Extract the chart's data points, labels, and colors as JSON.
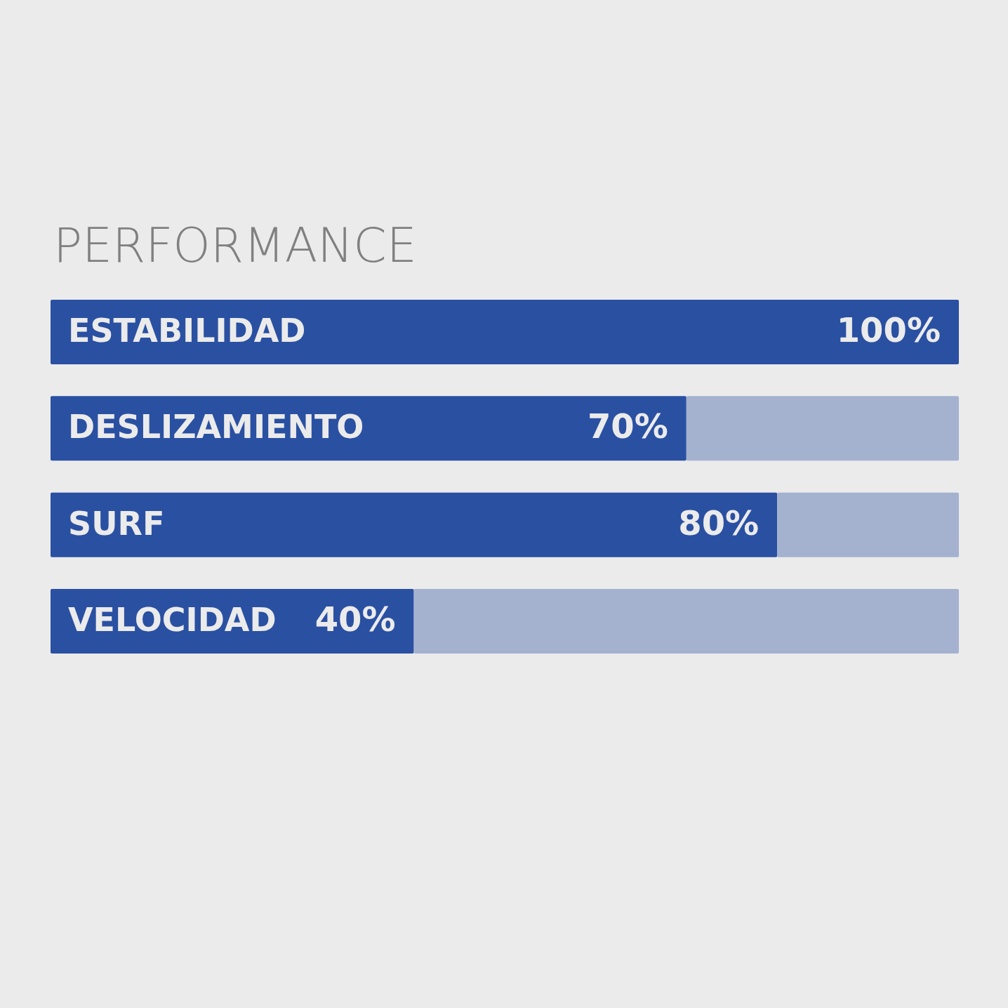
{
  "chart_data": {
    "type": "bar",
    "orientation": "horizontal",
    "stacked": true,
    "title": "PERFORMANCE",
    "categories": [
      "ESTABILIDAD",
      "DESLIZAMIENTO",
      "SURF",
      "VELOCIDAD"
    ],
    "series": [
      {
        "color": "#2a50a2",
        "values": [
          100,
          70,
          80,
          40
        ],
        "value_labels": [
          "100%",
          "70%",
          "80%",
          "40%"
        ]
      },
      {
        "color": "#a4b2d0",
        "values": [
          0,
          30,
          20,
          60
        ]
      }
    ],
    "xlim": [
      0,
      100
    ],
    "tick_labels": false
  }
}
